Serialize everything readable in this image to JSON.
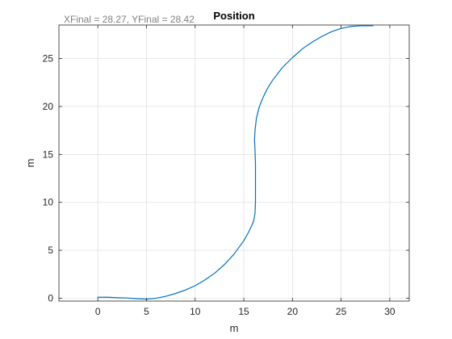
{
  "chart_data": {
    "type": "line",
    "title": "Position",
    "annotation": "XFinal = 28.27, YFinal = 28.42",
    "xlabel": "m",
    "ylabel": "m",
    "xlim": [
      -4,
      32
    ],
    "ylim": [
      -0.3,
      28.5
    ],
    "xticks": [
      0,
      5,
      10,
      15,
      20,
      25,
      30
    ],
    "yticks": [
      0,
      5,
      10,
      15,
      20,
      25
    ],
    "grid": true,
    "line_color": "#0072BD",
    "series": [
      {
        "x": [
          0,
          1,
          2,
          3,
          4,
          5,
          6,
          7,
          8,
          9,
          10,
          11,
          12,
          13,
          14,
          15,
          15.5,
          16,
          16.15,
          16.2,
          16.2,
          16.2,
          16.2,
          16.15,
          16.1,
          16.15,
          16.3,
          16.6,
          17,
          17.5,
          18,
          19,
          20,
          21,
          22,
          23,
          24,
          25,
          26,
          27,
          28,
          28.27
        ],
        "y": [
          0.1,
          0.1,
          0.05,
          0.02,
          -0.05,
          -0.1,
          0,
          0.2,
          0.5,
          0.85,
          1.3,
          1.9,
          2.6,
          3.5,
          4.6,
          6.0,
          6.9,
          8.0,
          8.8,
          10.0,
          11.0,
          12.0,
          14.0,
          15.5,
          16.5,
          17.5,
          18.8,
          20.0,
          21.0,
          22.0,
          22.8,
          24.1,
          25.1,
          26.0,
          26.7,
          27.3,
          27.8,
          28.15,
          28.35,
          28.42,
          28.42,
          28.42
        ]
      }
    ]
  }
}
